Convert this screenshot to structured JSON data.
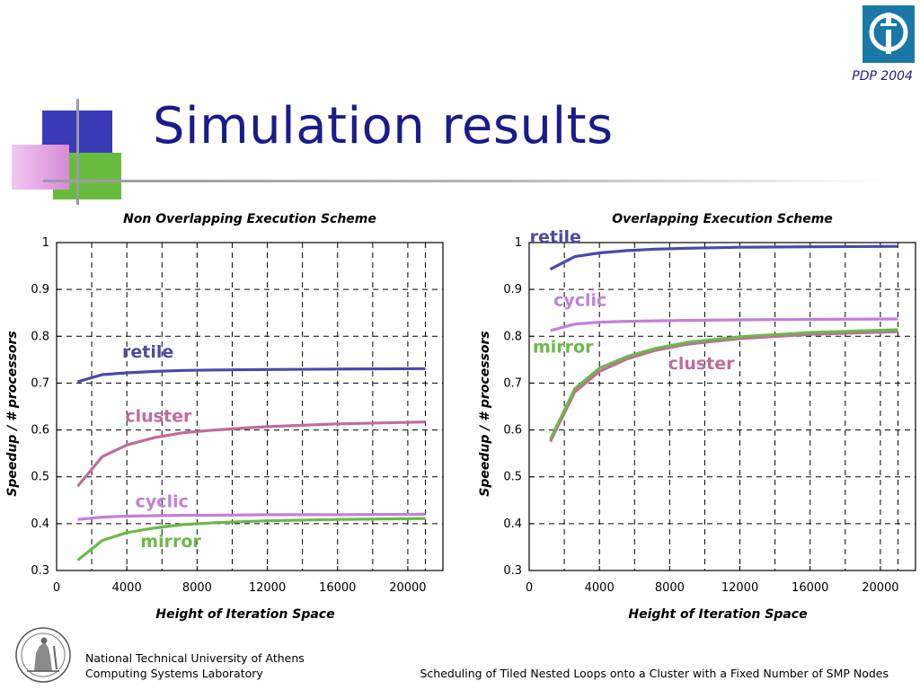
{
  "slide": {
    "title": "Simulation results",
    "conference": "PDP 2004"
  },
  "footer": {
    "institution": "National Technical University of Athens",
    "lab": "Computing Systems Laboratory",
    "talk_title": "Scheduling of Tiled Nested Loops onto a Cluster with a Fixed Number of SMP Nodes"
  },
  "logos": {
    "top_right": "university-logo-icon",
    "bottom_left": "university-seal-icon"
  },
  "colors": {
    "title": "#1b1b8c",
    "retile": "#4a4aa8",
    "cluster": "#c06c9c",
    "cyclic": "#c280d8",
    "mirror": "#6cb84a"
  },
  "chart_data": [
    {
      "type": "line",
      "title": "Non Overlapping Execution Scheme",
      "xlabel": "Height of Iteration Space",
      "ylabel": "Speedup / # processors",
      "xlim": [
        0,
        22000
      ],
      "ylim": [
        0.3,
        1
      ],
      "x_ticks": [
        0,
        4000,
        8000,
        12000,
        16000,
        20000
      ],
      "y_ticks": [
        0.3,
        0.4,
        0.5,
        0.6,
        0.7,
        0.8,
        0.9,
        1
      ],
      "grid": true,
      "series": [
        {
          "name": "retile",
          "color": "#4a4aa8",
          "x": [
            1200,
            2600,
            4000,
            5600,
            7200,
            9000,
            12000,
            16000,
            21000
          ],
          "y": [
            0.703,
            0.718,
            0.722,
            0.725,
            0.727,
            0.728,
            0.729,
            0.73,
            0.731
          ]
        },
        {
          "name": "cluster",
          "color": "#c06c9c",
          "x": [
            1200,
            2600,
            4000,
            5600,
            7200,
            9000,
            12000,
            16000,
            21000
          ],
          "y": [
            0.48,
            0.543,
            0.568,
            0.584,
            0.594,
            0.6,
            0.607,
            0.613,
            0.617
          ]
        },
        {
          "name": "cyclic",
          "color": "#c280d8",
          "x": [
            1200,
            2600,
            4000,
            5600,
            7200,
            9000,
            12000,
            16000,
            21000
          ],
          "y": [
            0.409,
            0.414,
            0.416,
            0.417,
            0.418,
            0.418,
            0.419,
            0.419,
            0.42
          ]
        },
        {
          "name": "mirror",
          "color": "#6cb84a",
          "x": [
            1200,
            2600,
            4000,
            5600,
            7200,
            9000,
            12000,
            16000,
            21000
          ],
          "y": [
            0.322,
            0.364,
            0.381,
            0.391,
            0.398,
            0.402,
            0.406,
            0.409,
            0.411
          ]
        }
      ],
      "annotations": [
        {
          "text": "retile",
          "color": "#4a4aa8",
          "x": 5200,
          "y": 0.755
        },
        {
          "text": "cluster",
          "color": "#c06c9c",
          "x": 5800,
          "y": 0.617
        },
        {
          "text": "cyclic",
          "color": "#c280d8",
          "x": 6000,
          "y": 0.435
        },
        {
          "text": "mirror",
          "color": "#6cb84a",
          "x": 6500,
          "y": 0.35
        }
      ]
    },
    {
      "type": "line",
      "title": "Overlapping Execution Scheme",
      "xlabel": "Height of Iteration Space",
      "ylabel": "Speedup / # processors",
      "xlim": [
        0,
        22000
      ],
      "ylim": [
        0.3,
        1
      ],
      "x_ticks": [
        0,
        4000,
        8000,
        12000,
        16000,
        20000
      ],
      "y_ticks": [
        0.3,
        0.4,
        0.5,
        0.6,
        0.7,
        0.8,
        0.9,
        1
      ],
      "grid": true,
      "series": [
        {
          "name": "retile",
          "color": "#4a4aa8",
          "x": [
            1200,
            2600,
            4000,
            5600,
            7200,
            9000,
            12000,
            16000,
            21000
          ],
          "y": [
            0.943,
            0.97,
            0.978,
            0.983,
            0.986,
            0.988,
            0.99,
            0.991,
            0.992
          ]
        },
        {
          "name": "cyclic",
          "color": "#c280d8",
          "x": [
            1200,
            2600,
            4000,
            5600,
            7200,
            9000,
            12000,
            16000,
            21000
          ],
          "y": [
            0.812,
            0.826,
            0.83,
            0.832,
            0.833,
            0.834,
            0.835,
            0.836,
            0.837
          ]
        },
        {
          "name": "cluster",
          "color": "#c06c9c",
          "x": [
            1200,
            2600,
            4000,
            5600,
            7200,
            9000,
            12000,
            16000,
            21000
          ],
          "y": [
            0.575,
            0.681,
            0.725,
            0.752,
            0.77,
            0.783,
            0.795,
            0.804,
            0.81
          ]
        },
        {
          "name": "mirror",
          "color": "#6cb84a",
          "x": [
            1200,
            2600,
            4000,
            5600,
            7200,
            9000,
            12000,
            16000,
            21000
          ],
          "y": [
            0.58,
            0.688,
            0.732,
            0.757,
            0.774,
            0.787,
            0.799,
            0.808,
            0.814
          ]
        }
      ],
      "annotations": [
        {
          "text": "retile",
          "color": "#4a4aa8",
          "x": 1500,
          "y": 1.0
        },
        {
          "text": "cyclic",
          "color": "#c280d8",
          "x": 2900,
          "y": 0.865
        },
        {
          "text": "cluster",
          "color": "#c06c9c",
          "x": 9800,
          "y": 0.73
        },
        {
          "text": "mirror",
          "color": "#6cb84a",
          "x": 0,
          "y": 0.0
        }
      ],
      "side_labels": [
        {
          "text": "mirror",
          "color": "#6cb84a",
          "y": 0.765
        }
      ]
    }
  ]
}
